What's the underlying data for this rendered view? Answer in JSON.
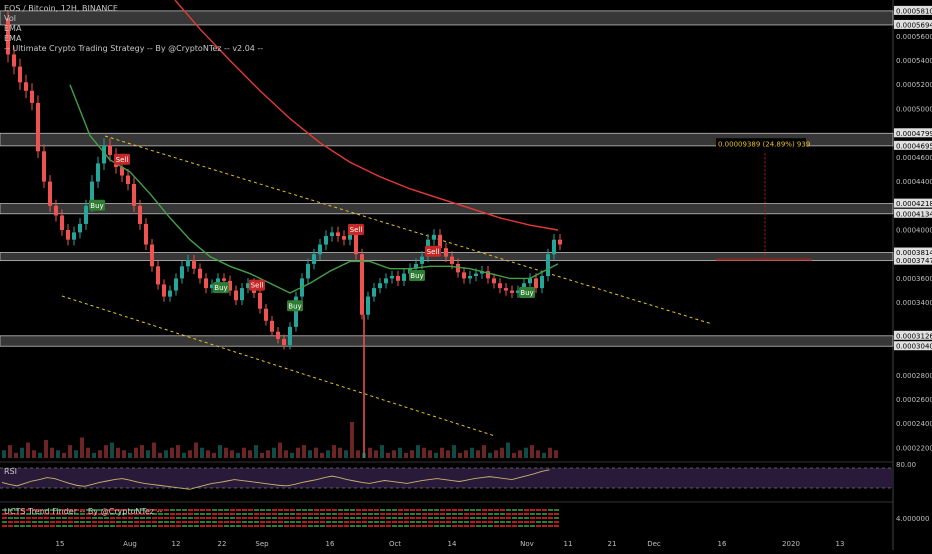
{
  "header": {
    "symbol_line": "EOS / Bitcoin, 12H, BINANCE",
    "indicators": [
      "Vol",
      "EMA",
      "EMA",
      "-- Ultimate Crypto Trading Strategy -- By @CryptoNTez -- v2.04 --"
    ]
  },
  "panels": {
    "rsi_label": "RSI",
    "trend_label": "UCTS Trend Finder -- By @CryptoNTez --"
  },
  "colors": {
    "background": "#000000",
    "up": "#26a69a",
    "down": "#ef5350",
    "ema_slow": "#e53935",
    "ema_fast": "#43a047",
    "trendline": "#e6c229",
    "zone": "#9e9e9e",
    "rsi_line": "#c8b46a",
    "rsi_fill": "#2a1a3a"
  },
  "chart_data": [
    {
      "type": "line",
      "title": "EOS / Bitcoin, 12H, BINANCE",
      "y_ticks": [
        "0.00058100",
        "0.00056940",
        "0.00056000",
        "0.00054000",
        "0.00052000",
        "0.00050000",
        "0.00047990",
        "0.00046950",
        "0.00046000",
        "0.00044000",
        "0.00042180",
        "0.00041340",
        "0.00040000",
        "0.00038140",
        "0.00037470",
        "0.00036000",
        "0.00034000",
        "0.00031260",
        "0.00030400",
        "0.00028000",
        "0.00026000",
        "0.00024000",
        "0.00022000"
      ],
      "x_ticks": [
        "15",
        "Aug",
        "12",
        "22",
        "Sep",
        "16",
        "Oct",
        "14",
        "Nov",
        "11",
        "21",
        "Dec",
        "16",
        "2020",
        "13"
      ],
      "ylim": [
        0.00021,
        0.00059
      ],
      "price_series": [
        {
          "name": "close",
          "x": [
            0,
            6,
            12,
            18,
            24,
            30,
            36,
            42,
            48,
            54,
            60,
            66,
            72,
            78,
            84,
            90,
            96,
            102,
            108,
            114,
            120,
            126,
            132,
            138,
            144,
            150,
            156,
            162,
            168,
            174,
            180,
            186,
            192,
            198,
            204,
            210,
            216,
            222,
            228,
            234,
            240,
            246,
            252,
            258,
            264,
            270,
            276,
            282,
            288,
            294,
            300,
            306,
            312,
            318,
            324,
            330,
            336,
            342,
            348,
            354,
            360,
            366,
            372,
            378,
            384,
            390,
            396,
            402,
            408,
            414,
            420,
            426,
            432,
            438,
            444,
            450,
            456,
            462,
            468,
            474,
            480,
            486,
            492,
            498,
            504,
            510,
            516,
            522,
            528,
            534,
            540,
            546,
            552,
            558
          ],
          "values": [
            0.000575,
            0.000545,
            0.000535,
            0.000522,
            0.000515,
            0.000505,
            0.000465,
            0.00044,
            0.00042,
            0.000412,
            0.0004,
            0.000392,
            0.000398,
            0.000405,
            0.00042,
            0.00044,
            0.000455,
            0.00047,
            0.000462,
            0.000452,
            0.000445,
            0.000438,
            0.00042,
            0.000405,
            0.000388,
            0.00037,
            0.000355,
            0.000345,
            0.00035,
            0.00036,
            0.00037,
            0.000375,
            0.000368,
            0.00036,
            0.000352,
            0.000355,
            0.00036,
            0.000358,
            0.00035,
            0.000342,
            0.000352,
            0.000356,
            0.000348,
            0.000335,
            0.000325,
            0.000316,
            0.00031,
            0.000305,
            0.00032,
            0.000345,
            0.00036,
            0.000372,
            0.00038,
            0.000388,
            0.000395,
            0.000398,
            0.000395,
            0.000392,
            0.000396,
            0.00038,
            0.00033,
            0.000345,
            0.000352,
            0.000356,
            0.00036,
            0.000362,
            0.000358,
            0.000364,
            0.000368,
            0.000372,
            0.000378,
            0.000392,
            0.000396,
            0.000385,
            0.000378,
            0.000372,
            0.000365,
            0.00036,
            0.000362,
            0.000364,
            0.000366,
            0.00036,
            0.000356,
            0.000352,
            0.00035,
            0.000348,
            0.00035,
            0.000356,
            0.00036,
            0.000352,
            0.000362,
            0.00038,
            0.000392,
            0.000388
          ]
        },
        {
          "name": "EMA (slow)",
          "x": [
            175,
            200,
            230,
            260,
            290,
            320,
            350,
            380,
            410,
            440,
            470,
            500,
            530,
            558
          ],
          "values": [
            0.00059,
            0.000566,
            0.00054,
            0.000515,
            0.000492,
            0.000472,
            0.000456,
            0.000444,
            0.000434,
            0.000426,
            0.000418,
            0.00041,
            0.000404,
            0.0004
          ]
        },
        {
          "name": "EMA (fast)",
          "x": [
            70,
            90,
            110,
            130,
            150,
            170,
            190,
            210,
            230,
            250,
            270,
            290,
            310,
            330,
            350,
            370,
            390,
            410,
            430,
            450,
            470,
            490,
            510,
            530,
            558
          ],
          "values": [
            0.00052,
            0.000478,
            0.000458,
            0.000448,
            0.00043,
            0.00041,
            0.000392,
            0.000378,
            0.00037,
            0.000364,
            0.000356,
            0.000348,
            0.000356,
            0.000366,
            0.000374,
            0.000374,
            0.000368,
            0.000368,
            0.00037,
            0.00037,
            0.000368,
            0.000364,
            0.00036,
            0.00036,
            0.000372
          ]
        }
      ],
      "signals": [
        {
          "label": "Buy",
          "x": 97,
          "y": 0.00042,
          "kind": "buy"
        },
        {
          "label": "Sell",
          "x": 122,
          "y": 0.000458,
          "kind": "sell"
        },
        {
          "label": "Buy",
          "x": 221,
          "y": 0.000352,
          "kind": "buy"
        },
        {
          "label": "Sell",
          "x": 257,
          "y": 0.000354,
          "kind": "sell"
        },
        {
          "label": "Buy",
          "x": 295,
          "y": 0.000337,
          "kind": "buy"
        },
        {
          "label": "Sell",
          "x": 356,
          "y": 0.0004,
          "kind": "sell"
        },
        {
          "label": "Buy",
          "x": 417,
          "y": 0.000362,
          "kind": "buy"
        },
        {
          "label": "Sell",
          "x": 433,
          "y": 0.000382,
          "kind": "sell"
        },
        {
          "label": "Buy",
          "x": 527,
          "y": 0.000348,
          "kind": "buy"
        }
      ],
      "annotation": {
        "text": "0.00009389 (24.89%) 939",
        "value": 0.00047
      }
    },
    {
      "type": "bar",
      "title": "Vol",
      "values": [
        3,
        5,
        2,
        4,
        6,
        3,
        2,
        7,
        4,
        3,
        2,
        5,
        3,
        8,
        4,
        2,
        3,
        5,
        6,
        4,
        3,
        2,
        4,
        5,
        3,
        6,
        2,
        3,
        4,
        5,
        2,
        3,
        6,
        4,
        3,
        2,
        5,
        4,
        3,
        2,
        4,
        3,
        5,
        2,
        3,
        4,
        6,
        3,
        2,
        4,
        5,
        3,
        4,
        2,
        3,
        5,
        4,
        3,
        14,
        3,
        2,
        4,
        3,
        5,
        2,
        3,
        4,
        2,
        3,
        5,
        4,
        3,
        2,
        4,
        3,
        5,
        2,
        3,
        4,
        3,
        5,
        2,
        3,
        4,
        6,
        2,
        3,
        4,
        5,
        3,
        2,
        4,
        3
      ]
    },
    {
      "type": "line",
      "title": "RSI",
      "y_ticks": [
        "80.00"
      ],
      "values": [
        52,
        48,
        45,
        50,
        55,
        58,
        62,
        60,
        55,
        50,
        46,
        44,
        48,
        52,
        55,
        58,
        60,
        57,
        53,
        50,
        48,
        46,
        44,
        42,
        40,
        38,
        42,
        46,
        50,
        52,
        55,
        58,
        56,
        54,
        52,
        50,
        48,
        46,
        45,
        48,
        52,
        55,
        58,
        62,
        65,
        62,
        58,
        55,
        52,
        50,
        53,
        56,
        54,
        52,
        50,
        53,
        56,
        58,
        60,
        58,
        56,
        54,
        57,
        60,
        62,
        64,
        62,
        60,
        58,
        62,
        66,
        70,
        75,
        78
      ]
    },
    {
      "type": "bar",
      "title": "UCTS Trend Finder -- By @CryptoNTez --",
      "y_ticks": [
        "4.000000"
      ]
    }
  ]
}
